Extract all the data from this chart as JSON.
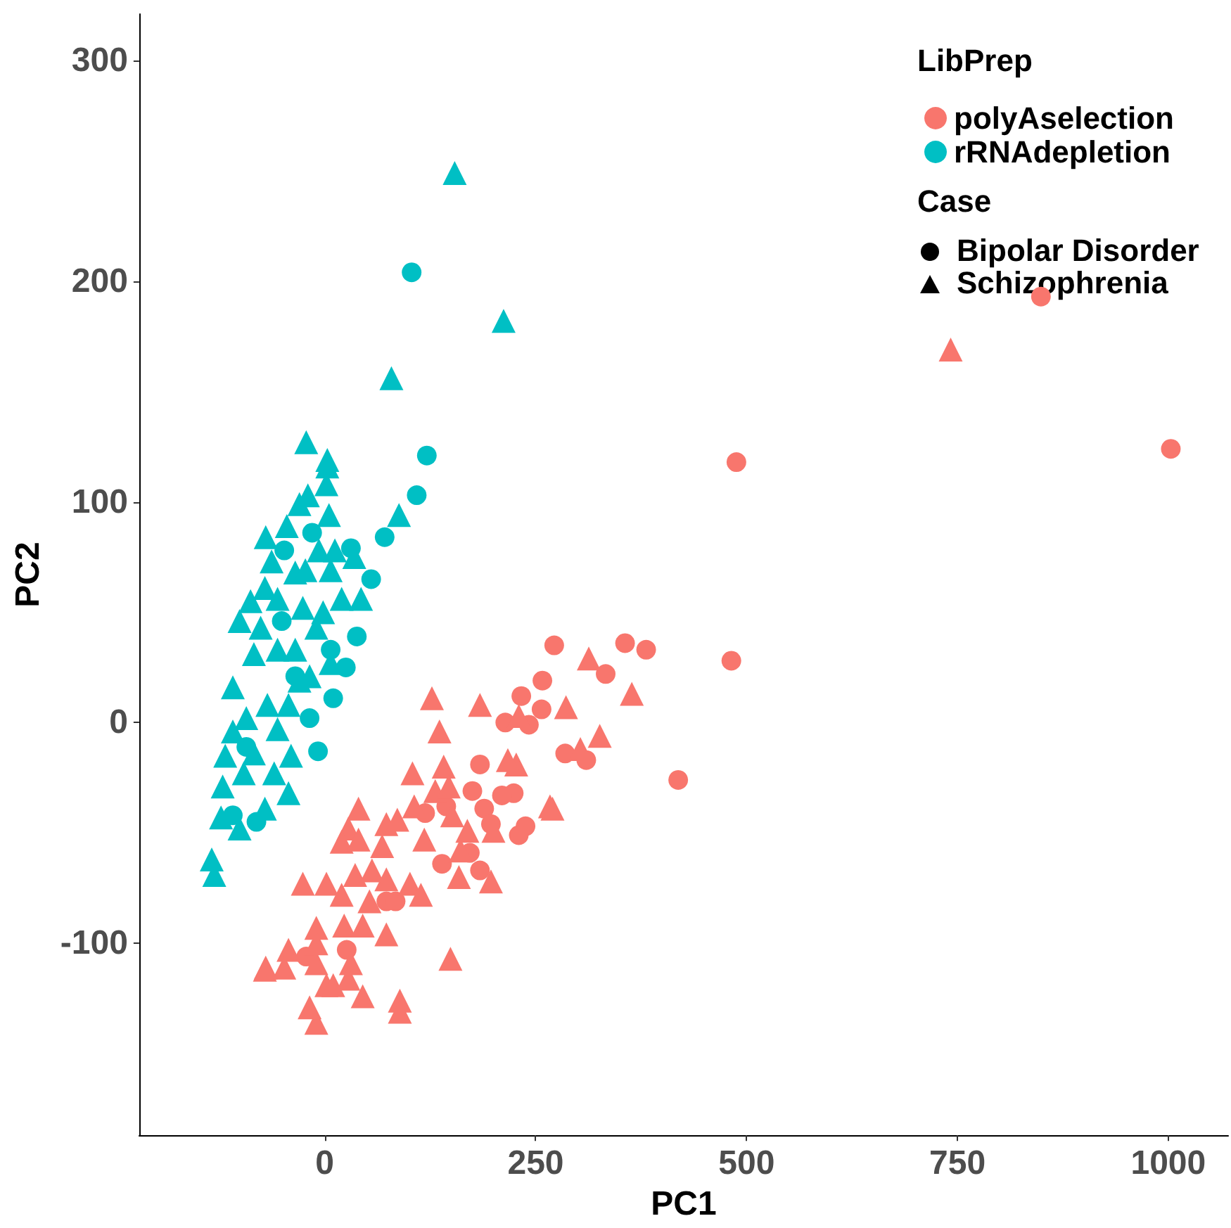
{
  "chart_data": {
    "type": "scatter",
    "xlabel": "PC1",
    "ylabel": "PC2",
    "legend_title": "LibPrep",
    "annotations": [
      "Case",
      "Bipolar Disorder",
      "Schizophrenia"
    ],
    "xlim": [
      -220,
      1071
    ],
    "ylim": [
      -187,
      321
    ],
    "xticks": [
      0,
      250,
      500,
      750,
      1000
    ],
    "yticks": [
      -100,
      0,
      100,
      200,
      300
    ],
    "grid": false,
    "legend": "top right",
    "series": [
      {
        "name": "polyAselection",
        "color": "#f8766d",
        "marker": "circle",
        "x": [
          849,
          1003,
          488,
          482,
          419,
          272,
          356,
          381,
          333,
          258,
          233,
          257,
          242,
          285,
          310,
          224,
          238,
          214,
          184,
          175,
          210,
          189,
          119,
          144,
          197,
          230,
          139,
          172,
          184,
          73,
          84,
          -22,
          26
        ],
        "values": [
          193,
          124,
          118,
          28,
          -26,
          35,
          36,
          33,
          22,
          19,
          12,
          6,
          -1,
          -14,
          -17,
          -32,
          -47,
          0,
          -19,
          -31,
          -33,
          -39,
          -41,
          -38,
          -46,
          -51,
          -64,
          -59,
          -67,
          -81,
          -81,
          -106,
          -103
        ]
      },
      {
        "color": "#f8766d",
        "marker": "triangle",
        "x": [
          742,
          149,
          89,
          -10,
          -70,
          313,
          364,
          286,
          326,
          303,
          227,
          270,
          230,
          127,
          184,
          136,
          217,
          141,
          104,
          131,
          147,
          106,
          151,
          40,
          73,
          86,
          28,
          267,
          20,
          40,
          68,
          118,
          169,
          200,
          161,
          -26,
          2,
          20,
          36,
          56,
          73,
          101,
          114,
          159,
          197,
          53,
          23,
          45,
          73,
          -10,
          -10,
          -43,
          -48,
          -71,
          -10,
          31,
          28,
          2,
          10,
          45,
          89,
          -18
        ],
        "values": [
          169,
          -107,
          -126,
          -136,
          -111,
          29,
          13,
          7,
          -6,
          -12,
          -19,
          -39,
          3,
          11,
          8,
          -4,
          -17,
          -20,
          -23,
          -31,
          -29,
          -38,
          -42,
          -39,
          -46,
          -44,
          -48,
          -38,
          -54,
          -53,
          -56,
          -53,
          -49,
          -49,
          -58,
          -73,
          -73,
          -78,
          -69,
          -67,
          -71,
          -73,
          -78,
          -70,
          -72,
          -81,
          -92,
          -92,
          -96,
          -93,
          -100,
          -103,
          -111,
          -112,
          -109,
          -109,
          -116,
          -119,
          -119,
          -124,
          -131,
          -129
        ]
      },
      {
        "name": "rRNAdepletion",
        "color": "#00bfc4",
        "marker": "circle",
        "x": [
          103,
          121,
          109,
          71,
          55,
          -15,
          -48,
          31,
          38,
          25,
          10,
          -8,
          -81,
          7,
          -18,
          -35,
          -51,
          -93,
          -109
        ],
        "values": [
          204,
          121,
          103,
          84,
          65,
          86,
          78,
          79,
          39,
          25,
          11,
          -13,
          -45,
          33,
          2,
          21,
          46,
          -11,
          -42
        ]
      },
      {
        "color": "#00bfc4",
        "marker": "triangle",
        "x": [
          154,
          212,
          79,
          88,
          -22,
          3,
          3,
          2,
          -20,
          -30,
          5,
          -45,
          -70,
          -63,
          -7,
          12,
          35,
          -35,
          -23,
          7,
          -71,
          -88,
          20,
          43,
          -56,
          -2,
          -109,
          -118,
          -121,
          -123,
          -134,
          -131,
          -56,
          -30,
          -40,
          -43,
          -71,
          -84,
          -68,
          -96,
          -56,
          -101,
          -76,
          -26,
          -10,
          -93,
          -43,
          -18,
          7,
          -109,
          -60,
          -84,
          -35,
          -101
        ],
        "values": [
          249,
          182,
          156,
          94,
          127,
          119,
          116,
          108,
          103,
          99,
          94,
          89,
          84,
          73,
          78,
          78,
          75,
          68,
          69,
          69,
          61,
          55,
          56,
          56,
          56,
          50,
          16,
          -15,
          -29,
          -43,
          -62,
          -69,
          33,
          19,
          -15,
          -32,
          -39,
          31,
          8,
          -23,
          -3,
          46,
          43,
          52,
          43,
          2,
          8,
          21,
          27,
          -4,
          -23,
          -14,
          33,
          -48
        ]
      }
    ]
  }
}
